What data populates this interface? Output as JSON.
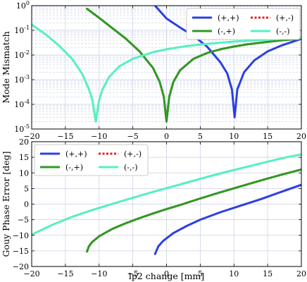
{
  "chart_data": [
    {
      "type": "line",
      "ylabel": "Mode Mismatch",
      "xlabel": "",
      "yscale": "log",
      "xlim": [
        -20,
        20
      ],
      "ylim": [
        1e-05,
        1
      ],
      "grid": true,
      "legend_position": "top-right",
      "x_ticks": [
        -20,
        -15,
        -10,
        -5,
        0,
        5,
        10,
        15,
        20
      ],
      "x_tick_labels": [
        "−20",
        "−15",
        "−10",
        "−5",
        "0",
        "5",
        "10",
        "15",
        "20"
      ],
      "y_ticks": [
        1,
        0.1,
        0.01,
        0.001,
        0.0001,
        1e-05
      ],
      "y_tick_labels": [
        {
          "base": "10",
          "exp": "0"
        },
        {
          "base": "10",
          "exp": "-1"
        },
        {
          "base": "10",
          "exp": "-2"
        },
        {
          "base": "10",
          "exp": "-3"
        },
        {
          "base": "10",
          "exp": "-4"
        },
        {
          "base": "10",
          "exp": "-5"
        }
      ],
      "series": [
        {
          "name": "(+,+)",
          "color": "#2b3fe3",
          "dashed": false,
          "x": [
            -1.7,
            0,
            2,
            4,
            6,
            8,
            9,
            9.7,
            10.1,
            10.5,
            11.5,
            13,
            15,
            17,
            20
          ],
          "y": [
            1,
            0.3,
            0.13,
            0.06,
            0.022,
            0.005,
            0.0018,
            0.0004,
            3e-05,
            0.0004,
            0.002,
            0.006,
            0.014,
            0.024,
            0.045
          ]
        },
        {
          "name": "(+,-)",
          "color": "#e02020",
          "dashed": true,
          "x": [
            -11.8,
            -10,
            -8,
            -6,
            -4,
            -2,
            -1,
            -0.4,
            0,
            0.4,
            1,
            2,
            4,
            6,
            8,
            10,
            12,
            15,
            17,
            20
          ],
          "y": [
            0.75,
            0.32,
            0.12,
            0.045,
            0.014,
            0.003,
            0.0008,
            0.0002,
            2e-05,
            0.0002,
            0.0008,
            0.0024,
            0.007,
            0.012,
            0.017,
            0.022,
            0.027,
            0.034,
            0.039,
            0.046
          ]
        },
        {
          "name": "(-,+)",
          "color": "#2e9a22",
          "dashed": false,
          "x": [
            -11.8,
            -10,
            -8,
            -6,
            -4,
            -2,
            -1,
            -0.4,
            0,
            0.4,
            1,
            2,
            4,
            6,
            8,
            10,
            12,
            15,
            17,
            20
          ],
          "y": [
            0.75,
            0.32,
            0.12,
            0.045,
            0.014,
            0.003,
            0.0008,
            0.0002,
            2e-05,
            0.0002,
            0.0008,
            0.0024,
            0.007,
            0.012,
            0.017,
            0.022,
            0.027,
            0.034,
            0.039,
            0.046
          ]
        },
        {
          "name": "(-,-)",
          "color": "#55f0c0",
          "dashed": false,
          "x": [
            -20,
            -18,
            -16,
            -14,
            -12.5,
            -11.5,
            -11,
            -10.5,
            -10,
            -9.5,
            -8.5,
            -7,
            -5,
            -2,
            0,
            3,
            6,
            10,
            15,
            20
          ],
          "y": [
            0.17,
            0.07,
            0.025,
            0.007,
            0.0017,
            0.0004,
            0.00015,
            2e-05,
            0.00015,
            0.0004,
            0.0013,
            0.0035,
            0.007,
            0.013,
            0.017,
            0.023,
            0.028,
            0.035,
            0.042,
            0.05
          ]
        }
      ]
    },
    {
      "type": "line",
      "ylabel": "Gouy Phase Error [deg]",
      "xlabel": "lp2 change [mm]",
      "xlim": [
        -20,
        20
      ],
      "ylim": [
        -20,
        20
      ],
      "grid": true,
      "legend_position": "top-left",
      "x_ticks": [
        -20,
        -15,
        -10,
        -5,
        0,
        5,
        10,
        15,
        20
      ],
      "x_tick_labels": [
        "−20",
        "−15",
        "−10",
        "−5",
        "0",
        "5",
        "10",
        "15",
        "20"
      ],
      "y_ticks": [
        20,
        15,
        10,
        5,
        0,
        -5,
        -10,
        -15,
        -20
      ],
      "y_tick_labels": [
        "20",
        "15",
        "10",
        "5",
        "0",
        "−5",
        "−10",
        "−15",
        "−20"
      ],
      "series": [
        {
          "name": "(+,+)",
          "color": "#2b3fe3",
          "dashed": false,
          "x": [
            -1.7,
            -1.2,
            -0.5,
            1,
            3,
            5,
            8,
            11,
            14,
            17,
            20
          ],
          "y": [
            -16,
            -13.5,
            -11.8,
            -9.3,
            -7,
            -5,
            -2.6,
            -0.5,
            1.6,
            3.9,
            6.2
          ]
        },
        {
          "name": "(+,-)",
          "color": "#e02020",
          "dashed": true,
          "x": [
            -11.8,
            -11.5,
            -11,
            -10,
            -8,
            -6,
            -4,
            -2,
            0,
            2,
            5,
            8,
            11,
            14,
            17,
            20
          ],
          "y": [
            -15.2,
            -13.5,
            -12.1,
            -10.3,
            -7.9,
            -6.1,
            -4.5,
            -3,
            -1.6,
            -0.3,
            1.8,
            3.8,
            5.7,
            7.6,
            9.4,
            11.1
          ]
        },
        {
          "name": "(-,+)",
          "color": "#2e9a22",
          "dashed": false,
          "x": [
            -11.8,
            -11.5,
            -11,
            -10,
            -8,
            -6,
            -4,
            -2,
            0,
            2,
            5,
            8,
            11,
            14,
            17,
            20
          ],
          "y": [
            -15.2,
            -13.5,
            -12.1,
            -10.3,
            -7.9,
            -6.1,
            -4.5,
            -3,
            -1.6,
            -0.3,
            1.8,
            3.8,
            5.7,
            7.6,
            9.4,
            11.1
          ]
        },
        {
          "name": "(-,-)",
          "color": "#55f0c0",
          "dashed": false,
          "x": [
            -20,
            -17,
            -14,
            -11,
            -8,
            -5,
            -2,
            0,
            3,
            6,
            9,
            12,
            15,
            18,
            20
          ],
          "y": [
            -9.8,
            -6.7,
            -4.1,
            -1.9,
            0.1,
            2,
            3.9,
            5.1,
            6.9,
            8.7,
            10.4,
            12,
            13.6,
            15.1,
            15.9
          ]
        }
      ]
    }
  ]
}
